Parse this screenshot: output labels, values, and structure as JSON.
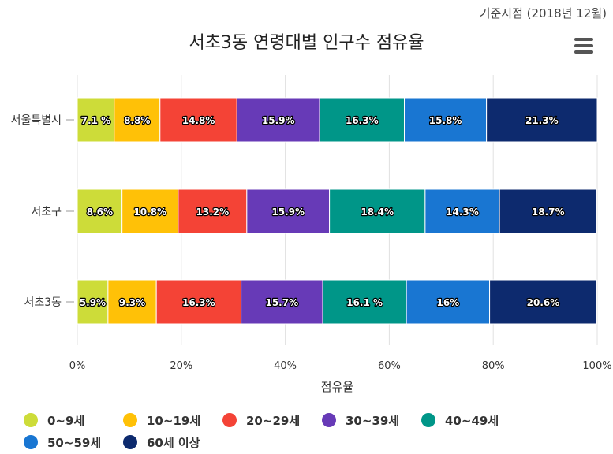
{
  "header": {
    "ref_date": "기준시점 (2018년 12월)",
    "title": "서초3동 연령대별 인구수 점유율"
  },
  "menu": {
    "icon": "hamburger-menu-icon"
  },
  "chart_data": {
    "type": "bar",
    "orientation": "horizontal",
    "stacking": "percent",
    "title": "서초3동 연령대별 인구수 점유율",
    "xlabel": "점유율",
    "ylabel": "",
    "xlim": [
      0,
      100
    ],
    "x_ticks": [
      "0%",
      "20%",
      "40%",
      "60%",
      "80%",
      "100%"
    ],
    "x_tick_values": [
      0,
      20,
      40,
      60,
      80,
      100
    ],
    "grid": "vertical",
    "legend_position": "bottom-left",
    "categories": [
      "서울특별시",
      "서초구",
      "서초3동"
    ],
    "series": [
      {
        "name": "0~9세",
        "color": "#cddc39",
        "values": [
          7.1,
          8.6,
          5.9
        ],
        "labels": [
          "7.1 %",
          "8.6%",
          "5.9%"
        ]
      },
      {
        "name": "10~19세",
        "color": "#ffc107",
        "values": [
          8.8,
          10.8,
          9.3
        ],
        "labels": [
          "8.8%",
          "10.8%",
          "9.3%"
        ]
      },
      {
        "name": "20~29세",
        "color": "#f44336",
        "values": [
          14.8,
          13.2,
          16.3
        ],
        "labels": [
          "14.8%",
          "13.2%",
          "16.3%"
        ]
      },
      {
        "name": "30~39세",
        "color": "#673ab7",
        "values": [
          15.9,
          15.9,
          15.7
        ],
        "labels": [
          "15.9%",
          "15.9%",
          "15.7%"
        ]
      },
      {
        "name": "40~49세",
        "color": "#009688",
        "values": [
          16.3,
          18.4,
          16.1
        ],
        "labels": [
          "16.3%",
          "18.4%",
          "16.1 %"
        ]
      },
      {
        "name": "50~59세",
        "color": "#1976d2",
        "values": [
          15.8,
          14.3,
          16.0
        ],
        "labels": [
          "15.8%",
          "14.3%",
          "16%"
        ]
      },
      {
        "name": "60세 이상",
        "color": "#0d2a6e",
        "values": [
          21.3,
          18.7,
          20.6
        ],
        "labels": [
          "21.3%",
          "18.7%",
          "20.6%"
        ]
      }
    ]
  }
}
